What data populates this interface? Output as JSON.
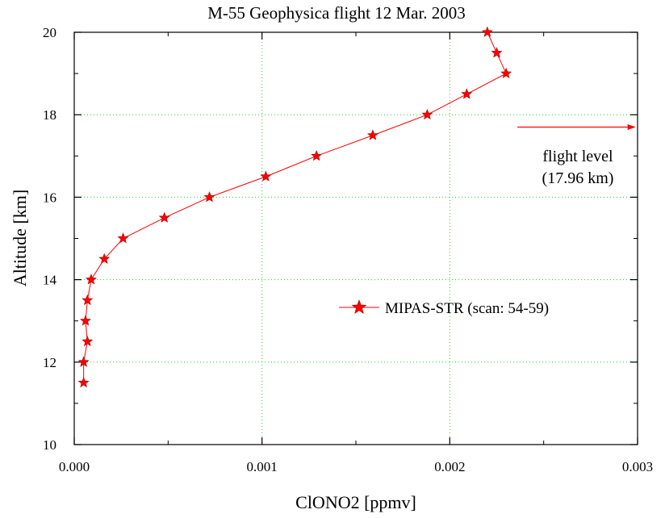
{
  "chart_data": {
    "type": "line",
    "title": "M-55 Geophysica flight 12 Mar. 2003",
    "xlabel": "ClONO2 [ppmv]",
    "ylabel": "Altitude [km]",
    "xlim": [
      0,
      0.003
    ],
    "ylim": [
      10,
      20
    ],
    "xticks": [
      "0.000",
      "0.001",
      "0.002",
      "0.003"
    ],
    "yticks": [
      "10",
      "12",
      "14",
      "16",
      "18",
      "20"
    ],
    "grid": true,
    "legend_position": "center-right",
    "series": [
      {
        "name": "MIPAS-STR (scan: 54-59)",
        "color": "#ff0000",
        "marker": "star",
        "x": [
          5e-05,
          5e-05,
          7e-05,
          6e-05,
          7e-05,
          9e-05,
          0.00016,
          0.00026,
          0.00048,
          0.00072,
          0.00102,
          0.00129,
          0.00159,
          0.00188,
          0.00209,
          0.0023,
          0.00225,
          0.0022
        ],
        "y": [
          11.5,
          12.0,
          12.5,
          13.0,
          13.5,
          14.0,
          14.5,
          15.0,
          15.5,
          16.0,
          16.5,
          17.0,
          17.5,
          18.0,
          18.5,
          19.0,
          19.5,
          20.0
        ]
      }
    ],
    "annotations": [
      {
        "lines": [
          "flight level",
          "(17.96 km)"
        ],
        "arrow_y": 17.7,
        "arrow_x": [
          0.00236,
          0.00299
        ]
      }
    ]
  }
}
